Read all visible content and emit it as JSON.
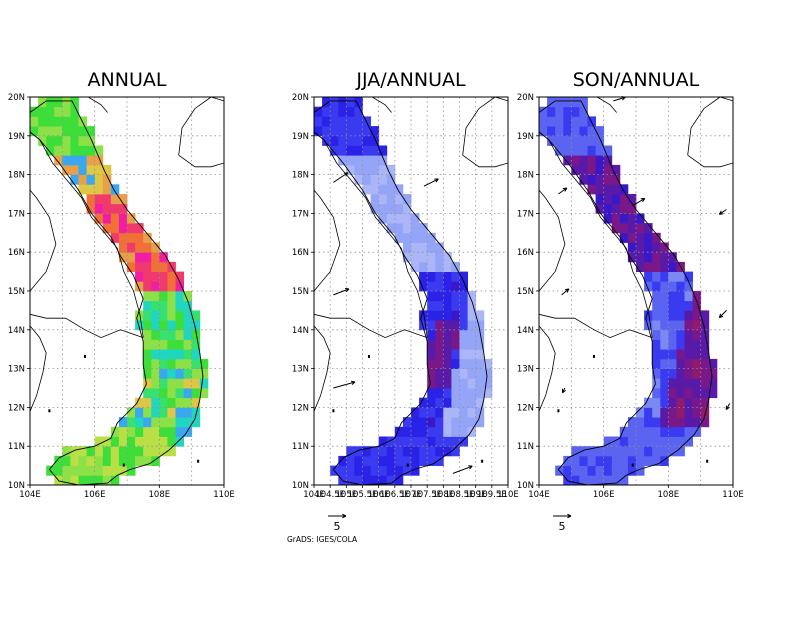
{
  "footer": {
    "credit": "GrADS: IGES/COLA"
  },
  "color_scales": {
    "rainbow": [
      "#d8e048",
      "#b8e046",
      "#8ee048",
      "#3ede3a",
      "#38e070",
      "#20d6c0",
      "#3aa8f0",
      "#e0c646",
      "#e8a048",
      "#f07038",
      "#f03a6e",
      "#f01ea0"
    ],
    "blue_ratio": [
      "#aab6f8",
      "#94a4f6",
      "#7c88f4",
      "#5a64f0",
      "#3a3af0",
      "#2a22e6",
      "#3a18c8",
      "#5a1aa8",
      "#7a188a",
      "#901a6c"
    ]
  },
  "panels": [
    {
      "id": "annual",
      "title": "ANNUAL",
      "scale": "rainbow",
      "lat_labels": [
        "10N",
        "11N",
        "12N",
        "13N",
        "14N",
        "15N",
        "16N",
        "17N",
        "18N",
        "19N",
        "20N"
      ],
      "lon_labels": [
        "104E",
        "106E",
        "108E",
        "110E"
      ],
      "vector_label": "",
      "vectors": []
    },
    {
      "id": "jja",
      "title": "JJA/ANNUAL",
      "scale": "blue_ratio",
      "lat_labels": [
        "10N",
        "11N",
        "12N",
        "13N",
        "14N",
        "15N",
        "16N",
        "17N",
        "18N",
        "19N",
        "20N"
      ],
      "lon_labels": [
        "104E",
        "104.5E",
        "105E",
        "105.5E",
        "106E",
        "106.5E",
        "107E",
        "107.5E",
        "108E",
        "108.5E",
        "109E",
        "109.5E",
        "110E"
      ],
      "vector_label": "5",
      "vectors": [
        {
          "lon": 104.6,
          "lat": 17.8,
          "u": 1.2,
          "v": 0.8
        },
        {
          "lon": 107.4,
          "lat": 17.7,
          "u": 1.2,
          "v": 0.6
        },
        {
          "lon": 104.6,
          "lat": 14.9,
          "u": 1.3,
          "v": 0.5
        },
        {
          "lon": 104.6,
          "lat": 12.5,
          "u": 1.8,
          "v": 0.5
        },
        {
          "lon": 108.3,
          "lat": 10.3,
          "u": 1.6,
          "v": 0.6
        }
      ]
    },
    {
      "id": "son",
      "title": "SON/ANNUAL",
      "scale": "blue_ratio",
      "lat_labels": [
        "10N",
        "11N",
        "12N",
        "13N",
        "14N",
        "15N",
        "16N",
        "17N",
        "18N",
        "19N",
        "20N"
      ],
      "lon_labels": [
        "104E",
        "106E",
        "108E",
        "110E"
      ],
      "vector_label": "5",
      "vectors": [
        {
          "lon": 104.6,
          "lat": 17.5,
          "u": 0.7,
          "v": 0.5
        },
        {
          "lon": 106.9,
          "lat": 17.2,
          "u": 1.0,
          "v": 0.6
        },
        {
          "lon": 109.8,
          "lat": 17.1,
          "u": -0.6,
          "v": -0.4
        },
        {
          "lon": 104.7,
          "lat": 14.9,
          "u": 0.6,
          "v": 0.5
        },
        {
          "lon": 109.8,
          "lat": 14.5,
          "u": -0.6,
          "v": -0.6
        },
        {
          "lon": 104.8,
          "lat": 12.5,
          "u": -0.2,
          "v": -0.4
        },
        {
          "lon": 106.3,
          "lat": 19.9,
          "u": 1.0,
          "v": 0.3
        },
        {
          "lon": 109.9,
          "lat": 12.1,
          "u": -0.3,
          "v": -0.5
        }
      ]
    }
  ]
}
